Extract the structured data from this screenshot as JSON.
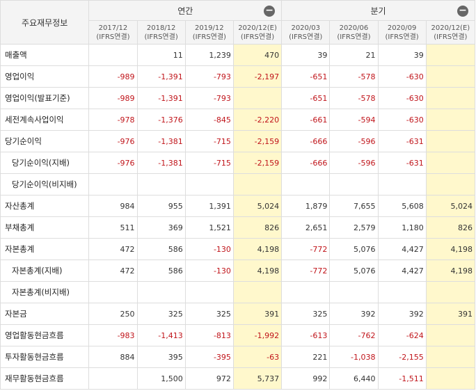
{
  "table": {
    "title": "주요재무정보",
    "groups": [
      {
        "label": "연간",
        "collapse_label": "−"
      },
      {
        "label": "분기",
        "collapse_label": "−"
      }
    ],
    "columns": [
      {
        "period": "2017/12",
        "standard": "(IFRS연결)"
      },
      {
        "period": "2018/12",
        "standard": "(IFRS연결)"
      },
      {
        "period": "2019/12",
        "standard": "(IFRS연결)"
      },
      {
        "period": "2020/12(E)",
        "standard": "(IFRS연결)",
        "estimate": true
      },
      {
        "period": "2020/03",
        "standard": "(IFRS연결)"
      },
      {
        "period": "2020/06",
        "standard": "(IFRS연결)"
      },
      {
        "period": "2020/09",
        "standard": "(IFRS연결)"
      },
      {
        "period": "2020/12(E)",
        "standard": "(IFRS연결)",
        "estimate": true
      }
    ],
    "rows": [
      {
        "label": "매출액",
        "sub": false,
        "values": [
          "",
          "11",
          "1,239",
          "470",
          "39",
          "21",
          "39",
          ""
        ]
      },
      {
        "label": "영업이익",
        "sub": false,
        "values": [
          "-989",
          "-1,391",
          "-793",
          "-2,197",
          "-651",
          "-578",
          "-630",
          ""
        ]
      },
      {
        "label": "영업이익(발표기준)",
        "sub": false,
        "values": [
          "-989",
          "-1,391",
          "-793",
          "",
          "-651",
          "-578",
          "-630",
          ""
        ]
      },
      {
        "label": "세전계속사업이익",
        "sub": false,
        "values": [
          "-978",
          "-1,376",
          "-845",
          "-2,220",
          "-661",
          "-594",
          "-630",
          ""
        ]
      },
      {
        "label": "당기순이익",
        "sub": false,
        "values": [
          "-976",
          "-1,381",
          "-715",
          "-2,159",
          "-666",
          "-596",
          "-631",
          ""
        ]
      },
      {
        "label": "당기순이익(지배)",
        "sub": true,
        "values": [
          "-976",
          "-1,381",
          "-715",
          "-2,159",
          "-666",
          "-596",
          "-631",
          ""
        ]
      },
      {
        "label": "당기순이익(비지배)",
        "sub": true,
        "values": [
          "",
          "",
          "",
          "",
          "",
          "",
          "",
          ""
        ]
      },
      {
        "label": "자산총계",
        "sub": false,
        "values": [
          "984",
          "955",
          "1,391",
          "5,024",
          "1,879",
          "7,655",
          "5,608",
          "5,024"
        ]
      },
      {
        "label": "부채총계",
        "sub": false,
        "values": [
          "511",
          "369",
          "1,521",
          "826",
          "2,651",
          "2,579",
          "1,180",
          "826"
        ]
      },
      {
        "label": "자본총계",
        "sub": false,
        "values": [
          "472",
          "586",
          "-130",
          "4,198",
          "-772",
          "5,076",
          "4,427",
          "4,198"
        ]
      },
      {
        "label": "자본총계(지배)",
        "sub": true,
        "values": [
          "472",
          "586",
          "-130",
          "4,198",
          "-772",
          "5,076",
          "4,427",
          "4,198"
        ]
      },
      {
        "label": "자본총계(비지배)",
        "sub": true,
        "values": [
          "",
          "",
          "",
          "",
          "",
          "",
          "",
          ""
        ]
      },
      {
        "label": "자본금",
        "sub": false,
        "values": [
          "250",
          "325",
          "325",
          "391",
          "325",
          "392",
          "392",
          "391"
        ]
      },
      {
        "label": "영업활동현금흐름",
        "sub": false,
        "values": [
          "-983",
          "-1,413",
          "-813",
          "-1,992",
          "-613",
          "-762",
          "-624",
          ""
        ]
      },
      {
        "label": "투자활동현금흐름",
        "sub": false,
        "values": [
          "884",
          "395",
          "-395",
          "-63",
          "221",
          "-1,038",
          "-2,155",
          ""
        ]
      },
      {
        "label": "재무활동현금흐름",
        "sub": false,
        "values": [
          "",
          "1,500",
          "972",
          "5,737",
          "992",
          "6,440",
          "-1,511",
          ""
        ]
      }
    ]
  },
  "colors": {
    "negative": "#c0141a",
    "estimate_bg": "#fff8cc",
    "header_bg": "#f4f4f4",
    "border": "#dddddd"
  }
}
